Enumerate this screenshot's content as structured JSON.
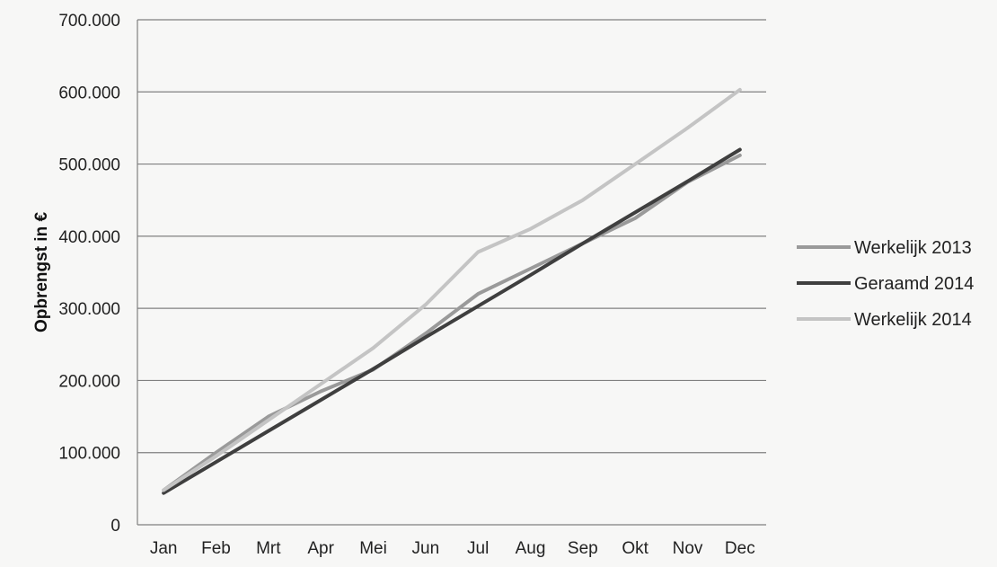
{
  "chart_data": {
    "type": "line",
    "title": "",
    "xlabel": "",
    "ylabel": "Opbrengst in €",
    "categories": [
      "Jan",
      "Feb",
      "Mrt",
      "Apr",
      "Mei",
      "Jun",
      "Jul",
      "Aug",
      "Sep",
      "Okt",
      "Nov",
      "Dec"
    ],
    "ylim": [
      0,
      700000
    ],
    "yticks": [
      0,
      100000,
      200000,
      300000,
      400000,
      500000,
      600000,
      700000
    ],
    "ytick_labels": [
      "0",
      "100.000",
      "200.000",
      "300.000",
      "400.000",
      "500.000",
      "600.000",
      "700.000"
    ],
    "grid": "horizontal",
    "legend_position": "right",
    "series": [
      {
        "name": "Werkelijk 2013",
        "color": "#9a9a9a",
        "values": [
          48000,
          100000,
          150000,
          185000,
          215000,
          265000,
          320000,
          355000,
          390000,
          425000,
          475000,
          512000
        ]
      },
      {
        "name": "Geraamd 2014",
        "color": "#3f3f3f",
        "values": [
          44000,
          87000,
          130000,
          173000,
          216000,
          260000,
          303000,
          346000,
          390000,
          433000,
          476000,
          520000
        ]
      },
      {
        "name": "Werkelijk 2014",
        "color": "#c4c4c4",
        "values": [
          48000,
          95000,
          145000,
          195000,
          245000,
          305000,
          378000,
          410000,
          450000,
          500000,
          550000,
          603000
        ]
      }
    ]
  }
}
